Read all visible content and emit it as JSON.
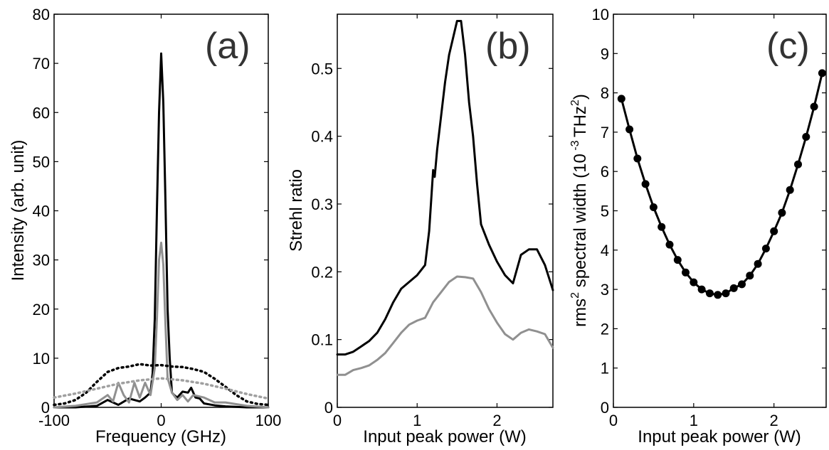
{
  "colors": {
    "black": "#000000",
    "gray": "#909090",
    "dotted_gray": "#a0a0a0"
  },
  "chart_data": [
    {
      "type": "line",
      "panel_label": "(a)",
      "xlabel": "Frequency (GHz)",
      "ylabel": "Intensity (arb. unit)",
      "xlim": [
        -100,
        100
      ],
      "ylim": [
        0,
        80
      ],
      "xticks": [
        -100,
        0,
        100
      ],
      "yticks": [
        0,
        10,
        20,
        30,
        40,
        50,
        60,
        70,
        80
      ],
      "grid": false,
      "series": [
        {
          "style": "solid",
          "color": "#000000",
          "x": [
            -100,
            -80,
            -60,
            -50,
            -40,
            -30,
            -20,
            -15,
            -10,
            -8,
            -6,
            -4,
            -2,
            0,
            2,
            4,
            6,
            8,
            10,
            12,
            15,
            20,
            25,
            28,
            32,
            36,
            40,
            50,
            60,
            80,
            100
          ],
          "y": [
            0,
            0,
            0.3,
            1.5,
            0.5,
            1.8,
            1.2,
            2,
            3,
            7,
            18,
            40,
            60,
            72,
            62,
            42,
            20,
            10,
            3,
            2.5,
            2,
            3.2,
            3,
            4,
            2,
            1.8,
            0.8,
            0.4,
            0.2,
            0,
            0
          ]
        },
        {
          "style": "solid",
          "color": "#909090",
          "x": [
            -100,
            -80,
            -60,
            -50,
            -45,
            -40,
            -35,
            -30,
            -25,
            -20,
            -15,
            -10,
            -6,
            -4,
            -2,
            0,
            2,
            4,
            6,
            10,
            15,
            20,
            25,
            30,
            40,
            50,
            60,
            80,
            100
          ],
          "y": [
            0,
            0.3,
            1,
            2.5,
            1.2,
            5,
            2.5,
            1,
            5,
            2,
            5,
            2.5,
            8,
            18,
            30,
            33.5,
            29,
            17,
            6,
            3,
            1.5,
            2.5,
            1.2,
            2.5,
            2,
            1,
            1,
            0.3,
            0
          ]
        },
        {
          "style": "dotted",
          "color": "#000000",
          "x": [
            -100,
            -90,
            -80,
            -70,
            -60,
            -50,
            -40,
            -30,
            -20,
            -10,
            0,
            10,
            20,
            30,
            40,
            50,
            60,
            70,
            80,
            90,
            100
          ],
          "y": [
            0.5,
            0.8,
            1.5,
            3,
            5.2,
            7.2,
            8,
            8.3,
            8.8,
            8.5,
            8.6,
            8.3,
            8.2,
            7.8,
            7.2,
            5.8,
            4.2,
            2.5,
            1.2,
            0.7,
            0.5
          ]
        },
        {
          "style": "dotted",
          "color": "#a0a0a0",
          "x": [
            -100,
            -80,
            -60,
            -40,
            -20,
            0,
            20,
            40,
            60,
            80,
            100
          ],
          "y": [
            2,
            2.8,
            3.8,
            4.8,
            5.5,
            5.9,
            5.5,
            4.8,
            3.8,
            2.7,
            1.8
          ]
        }
      ]
    },
    {
      "type": "line",
      "panel_label": "(b)",
      "xlabel": "Input peak power (W)",
      "ylabel": "Strehl ratio",
      "xlim": [
        0,
        2.7
      ],
      "ylim": [
        0,
        0.58
      ],
      "xticks": [
        0,
        1,
        2
      ],
      "yticks": [
        0,
        0.1,
        0.2,
        0.3,
        0.4,
        0.5
      ],
      "grid": false,
      "series": [
        {
          "style": "solid",
          "color": "#000000",
          "x": [
            0,
            0.1,
            0.2,
            0.3,
            0.4,
            0.5,
            0.6,
            0.7,
            0.8,
            0.9,
            1.0,
            1.1,
            1.15,
            1.2,
            1.22,
            1.25,
            1.3,
            1.35,
            1.4,
            1.45,
            1.5,
            1.55,
            1.6,
            1.65,
            1.7,
            1.75,
            1.8,
            1.9,
            2.0,
            2.1,
            2.2,
            2.3,
            2.4,
            2.5,
            2.6,
            2.7
          ],
          "y": [
            0.078,
            0.078,
            0.082,
            0.09,
            0.098,
            0.11,
            0.13,
            0.155,
            0.175,
            0.185,
            0.195,
            0.21,
            0.26,
            0.35,
            0.34,
            0.38,
            0.43,
            0.48,
            0.52,
            0.545,
            0.57,
            0.57,
            0.52,
            0.45,
            0.4,
            0.33,
            0.27,
            0.24,
            0.215,
            0.195,
            0.183,
            0.225,
            0.233,
            0.233,
            0.21,
            0.173
          ]
        },
        {
          "style": "solid",
          "color": "#909090",
          "x": [
            0,
            0.1,
            0.2,
            0.3,
            0.4,
            0.5,
            0.6,
            0.7,
            0.8,
            0.9,
            1.0,
            1.1,
            1.2,
            1.3,
            1.4,
            1.5,
            1.6,
            1.7,
            1.8,
            1.9,
            2.0,
            2.1,
            2.2,
            2.3,
            2.4,
            2.5,
            2.6,
            2.7
          ],
          "y": [
            0.048,
            0.048,
            0.055,
            0.058,
            0.062,
            0.07,
            0.08,
            0.095,
            0.11,
            0.122,
            0.128,
            0.132,
            0.155,
            0.17,
            0.185,
            0.193,
            0.192,
            0.19,
            0.17,
            0.145,
            0.125,
            0.108,
            0.1,
            0.11,
            0.115,
            0.112,
            0.108,
            0.088
          ]
        }
      ]
    },
    {
      "type": "line",
      "panel_label": "(c)",
      "xlabel": "Input peak power (W)",
      "ylabel": "rms 2 spectral width (10 -3 THz 2 )",
      "xlim": [
        0,
        2.65
      ],
      "ylim": [
        0,
        10
      ],
      "xticks": [
        0,
        1,
        2
      ],
      "yticks": [
        0,
        1,
        2,
        3,
        4,
        5,
        6,
        7,
        8,
        9,
        10
      ],
      "grid": false,
      "series": [
        {
          "style": "solid-markers",
          "color": "#000000",
          "x": [
            0.1,
            0.2,
            0.3,
            0.4,
            0.5,
            0.6,
            0.7,
            0.8,
            0.9,
            1.0,
            1.1,
            1.2,
            1.3,
            1.4,
            1.5,
            1.6,
            1.7,
            1.8,
            1.9,
            2.0,
            2.1,
            2.2,
            2.3,
            2.4,
            2.5,
            2.6
          ],
          "y": [
            7.85,
            7.07,
            6.33,
            5.68,
            5.09,
            4.59,
            4.14,
            3.75,
            3.43,
            3.18,
            3.0,
            2.9,
            2.86,
            2.9,
            3.03,
            3.13,
            3.35,
            3.65,
            4.04,
            4.48,
            4.95,
            5.53,
            6.18,
            6.88,
            7.65,
            8.5
          ]
        }
      ]
    }
  ]
}
